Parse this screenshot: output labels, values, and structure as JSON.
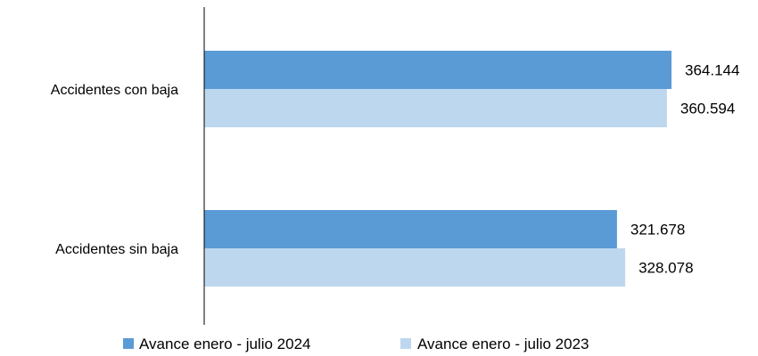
{
  "chart_data": {
    "type": "bar",
    "orientation": "horizontal",
    "categories": [
      "Accidentes con baja",
      "Accidentes sin baja"
    ],
    "series": [
      {
        "name": "Avance enero - julio 2024",
        "values": [
          364144,
          321678
        ],
        "labels": [
          "364.144",
          "321.678"
        ],
        "color": "#5b9bd5"
      },
      {
        "name": "Avance enero - julio 2023",
        "values": [
          360594,
          328078
        ],
        "labels": [
          "360.594",
          "328.078"
        ],
        "color": "#bdd7ee"
      }
    ],
    "xlim": [
      0,
      370000
    ],
    "grid": false,
    "legend": "bottom"
  }
}
